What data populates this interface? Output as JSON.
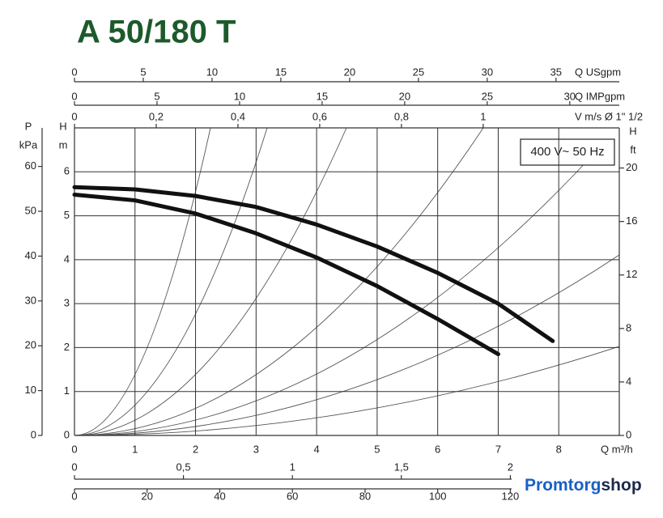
{
  "chart_data": {
    "type": "line",
    "title": "A 50/180 T",
    "annotation": "400 V~ 50 Hz",
    "x_label": "Q m³/h",
    "xlim": [
      0,
      9
    ],
    "xticks": [
      0,
      1,
      2,
      3,
      4,
      5,
      6,
      7,
      8
    ],
    "y_label_top": "H",
    "y_label_unit": "m",
    "ylim": [
      0,
      7
    ],
    "yticks": [
      0,
      1,
      2,
      3,
      4,
      5,
      6
    ],
    "grid": true,
    "series": [
      {
        "color": "#111111",
        "x": [
          0,
          1,
          2,
          3,
          4,
          5,
          6,
          7,
          7.9
        ],
        "values": [
          5.65,
          5.6,
          5.45,
          5.2,
          4.8,
          4.3,
          3.7,
          3.0,
          2.15
        ]
      },
      {
        "color": "#111111",
        "x": [
          0,
          1,
          2,
          3,
          4,
          5,
          6,
          7
        ],
        "values": [
          5.48,
          5.35,
          5.05,
          4.6,
          4.05,
          3.4,
          2.65,
          1.85
        ]
      }
    ],
    "left_axis": {
      "label_top": "P",
      "label_unit": "kPa",
      "lim": [
        0,
        68.6
      ],
      "ticks": [
        0,
        10,
        20,
        30,
        40,
        50,
        60
      ]
    },
    "right_axis": {
      "label_top": "H",
      "label_unit": "ft",
      "lim": [
        0,
        23
      ],
      "ticks": [
        0,
        4,
        8,
        12,
        16,
        20
      ]
    },
    "top_axes": [
      {
        "label": "Q USgpm",
        "lim": [
          0,
          39.6
        ],
        "ticks": [
          0,
          5,
          10,
          15,
          20,
          25,
          30,
          35
        ]
      },
      {
        "label": "Q IMPgpm",
        "lim": [
          0,
          33
        ],
        "ticks": [
          0,
          5,
          10,
          15,
          20,
          25,
          30
        ]
      },
      {
        "label": "V m/s Ø 1\" 1/2",
        "lim": [
          0,
          1.333
        ],
        "ticks": [
          0,
          {
            "value": 0.2,
            "label": "0,2"
          },
          {
            "value": 0.4,
            "label": "0,4"
          },
          {
            "value": 0.6,
            "label": "0,6"
          },
          {
            "value": 0.8,
            "label": "0,8"
          },
          1
        ]
      }
    ],
    "bottom_axes": [
      {
        "lim": [
          0,
          2.5
        ],
        "ticks": [
          0,
          {
            "value": 0.5,
            "label": "0,5"
          },
          1,
          {
            "value": 1.5,
            "label": "1,5"
          },
          2
        ]
      },
      {
        "lim": [
          0,
          150
        ],
        "ticks": [
          0,
          20,
          40,
          60,
          80,
          100,
          120
        ]
      }
    ],
    "logo": {
      "part1": "Promtorg",
      "part2": "shop"
    }
  }
}
